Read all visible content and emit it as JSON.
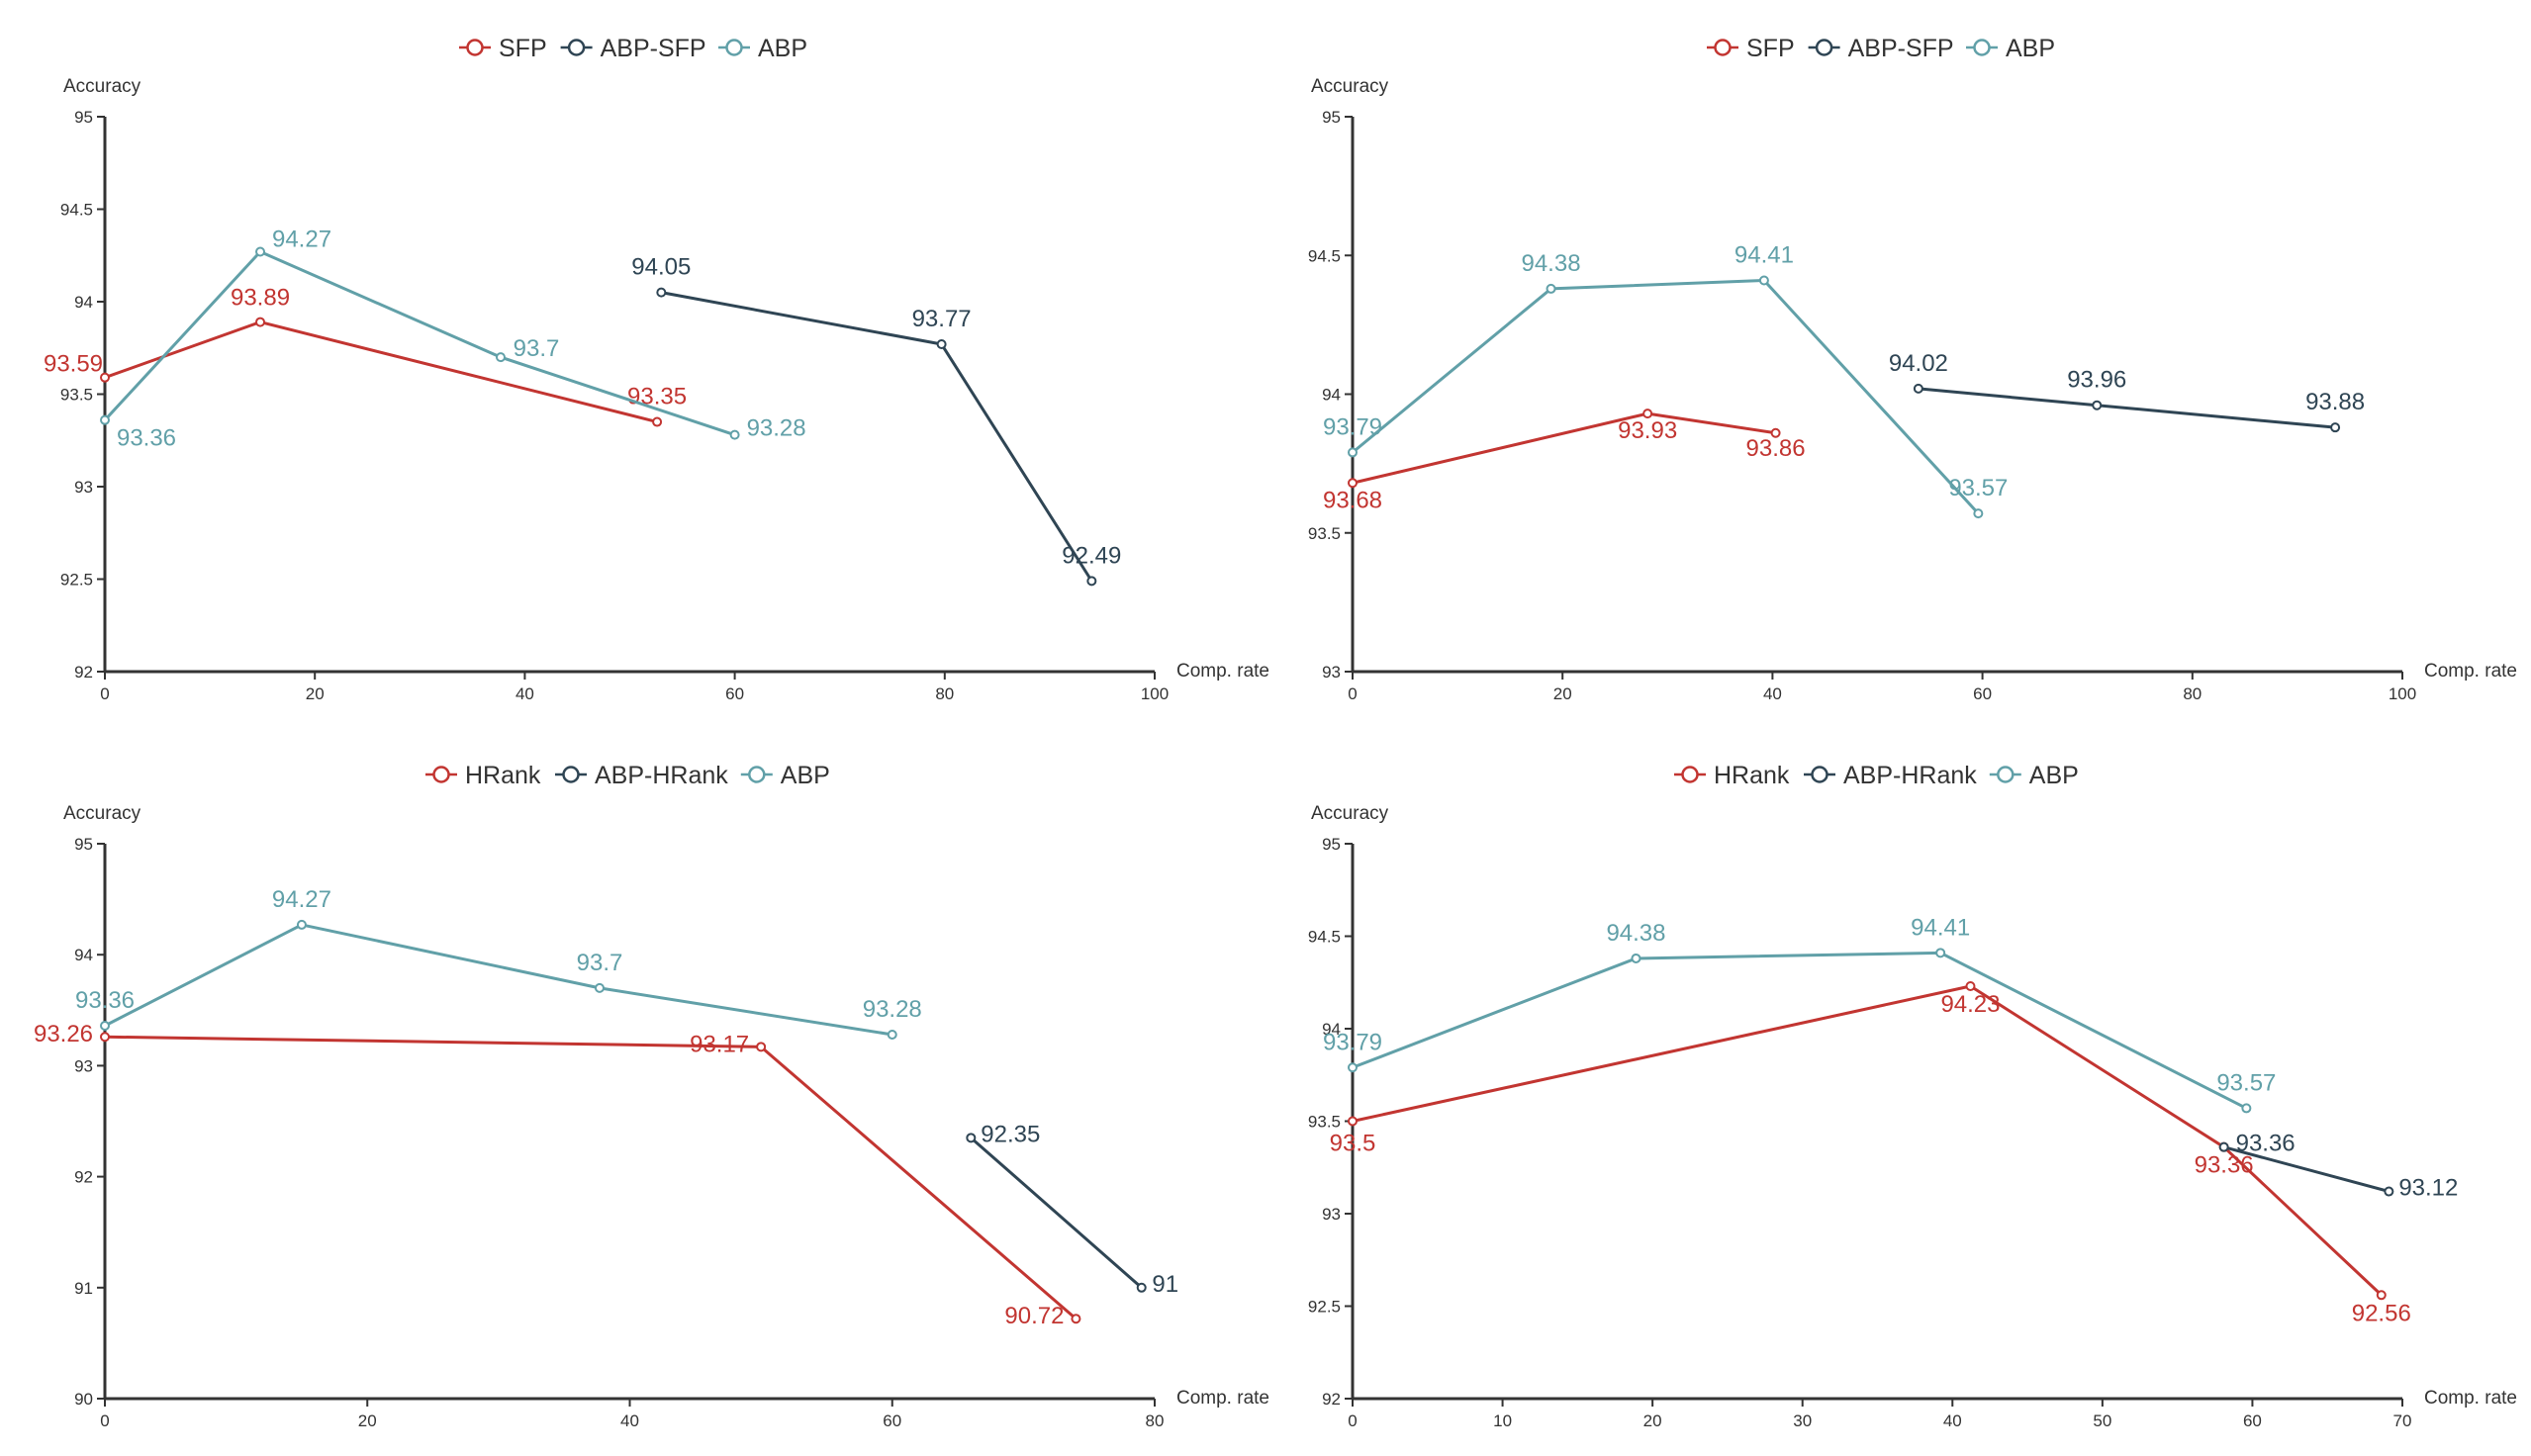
{
  "colors": {
    "red": "#c23531",
    "dark": "#2f4554",
    "teal": "#61a0a8",
    "axis": "#333333",
    "tick_text": "#333333"
  },
  "chart_data": [
    {
      "type": "line",
      "ylabel": "Accuracy",
      "xlabel": "Comp. rate",
      "xlim": [
        0,
        100
      ],
      "ylim": [
        92,
        95
      ],
      "xticks": [
        0,
        20,
        40,
        60,
        80,
        100
      ],
      "yticks": [
        92,
        92.5,
        93,
        93.5,
        94,
        94.5,
        95
      ],
      "series": [
        {
          "name": "SFP",
          "color": "red",
          "x": [
            0,
            14.8,
            52.6
          ],
          "values": [
            93.59,
            93.89,
            93.35
          ],
          "labels": [
            "93.59",
            "93.89",
            "93.35"
          ]
        },
        {
          "name": "ABP-SFP",
          "color": "dark",
          "x": [
            53.0,
            79.7,
            94.0
          ],
          "values": [
            94.05,
            93.77,
            92.49
          ],
          "labels": [
            "94.05",
            "93.77",
            "92.49"
          ]
        },
        {
          "name": "ABP",
          "color": "teal",
          "x": [
            0,
            14.8,
            37.7,
            60.0
          ],
          "values": [
            93.36,
            94.27,
            93.7,
            93.28
          ],
          "labels": [
            "93.36",
            "94.27",
            "93.7",
            "93.28"
          ]
        }
      ]
    },
    {
      "type": "line",
      "ylabel": "Accuracy",
      "xlabel": "Comp. rate",
      "xlim": [
        0,
        100
      ],
      "ylim": [
        93,
        95
      ],
      "xticks": [
        0,
        20,
        40,
        60,
        80,
        100
      ],
      "yticks": [
        93,
        93.5,
        94,
        94.5,
        95
      ],
      "series": [
        {
          "name": "SFP",
          "color": "red",
          "x": [
            0,
            28.1,
            40.3
          ],
          "values": [
            93.68,
            93.93,
            93.86
          ],
          "labels": [
            "93.68",
            "93.93",
            "93.86"
          ]
        },
        {
          "name": "ABP-SFP",
          "color": "dark",
          "x": [
            53.9,
            70.9,
            93.6
          ],
          "values": [
            94.02,
            93.96,
            93.88
          ],
          "labels": [
            "94.02",
            "93.96",
            "93.88"
          ]
        },
        {
          "name": "ABP",
          "color": "teal",
          "x": [
            0,
            18.9,
            39.2,
            59.6
          ],
          "values": [
            93.79,
            94.38,
            94.41,
            93.57
          ],
          "labels": [
            "93.79",
            "94.38",
            "94.41",
            "93.57"
          ]
        }
      ]
    },
    {
      "type": "line",
      "ylabel": "Accuracy",
      "xlabel": "Comp. rate",
      "xlim": [
        0,
        80
      ],
      "ylim": [
        90,
        95
      ],
      "xticks": [
        0,
        20,
        40,
        60,
        80
      ],
      "yticks": [
        90,
        91,
        92,
        93,
        94,
        95
      ],
      "series": [
        {
          "name": "HRank",
          "color": "red",
          "x": [
            0,
            50.0,
            74.0
          ],
          "values": [
            93.26,
            93.17,
            90.72
          ],
          "labels": [
            "93.26",
            "93.17",
            "90.72"
          ]
        },
        {
          "name": "ABP-HRank",
          "color": "dark",
          "x": [
            66.0,
            79.0
          ],
          "values": [
            92.35,
            91.0
          ],
          "labels": [
            "92.35",
            "91"
          ]
        },
        {
          "name": "ABP",
          "color": "teal",
          "x": [
            0,
            15.0,
            37.7,
            60.0
          ],
          "values": [
            93.36,
            94.27,
            93.7,
            93.28
          ],
          "labels": [
            "93.36",
            "94.27",
            "93.7",
            "93.28"
          ]
        }
      ]
    },
    {
      "type": "line",
      "ylabel": "Accuracy",
      "xlabel": "Comp. rate",
      "xlim": [
        0,
        70
      ],
      "ylim": [
        92,
        95
      ],
      "xticks": [
        0,
        10,
        20,
        30,
        40,
        50,
        60,
        70
      ],
      "yticks": [
        92,
        92.5,
        93,
        93.5,
        94,
        94.5,
        95
      ],
      "series": [
        {
          "name": "HRank",
          "color": "red",
          "x": [
            0,
            41.2,
            58.1,
            68.6
          ],
          "values": [
            93.5,
            94.23,
            93.36,
            92.56
          ],
          "labels": [
            "93.5",
            "94.23",
            "93.36",
            "92.56"
          ]
        },
        {
          "name": "ABP-HRank",
          "color": "dark",
          "x": [
            58.1,
            69.1
          ],
          "values": [
            93.36,
            93.12
          ],
          "labels": [
            "93.36",
            "93.12"
          ]
        },
        {
          "name": "ABP",
          "color": "teal",
          "x": [
            0,
            18.9,
            39.2,
            59.6
          ],
          "values": [
            93.79,
            94.38,
            94.41,
            93.57
          ],
          "labels": [
            "93.79",
            "94.38",
            "94.41",
            "93.57"
          ]
        }
      ]
    }
  ]
}
